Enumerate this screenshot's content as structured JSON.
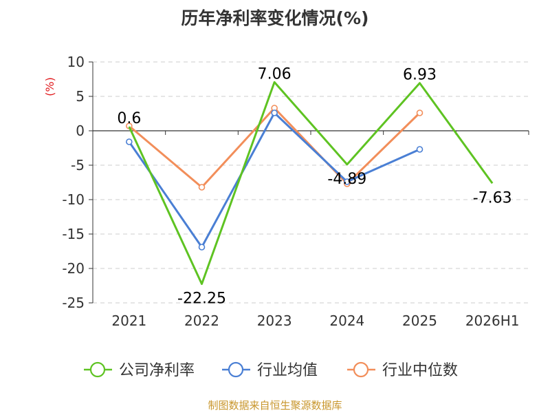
{
  "chart_data": {
    "type": "line",
    "title": "历年净利率变化情况(%)",
    "ylabel": "(%)",
    "ylim": [
      -25,
      10
    ],
    "yticks": [
      10,
      5,
      0,
      -5,
      -10,
      -15,
      -20,
      -25
    ],
    "categories": [
      "2021",
      "2022",
      "2023",
      "2024",
      "2025",
      "2026H1"
    ],
    "grid": true,
    "legend_position": "bottom",
    "series": [
      {
        "name": "公司净利率",
        "color": "#5ec322",
        "values": [
          0.6,
          -22.25,
          7.06,
          -4.89,
          6.93,
          -7.63
        ],
        "labels": [
          "0.6",
          "-22.25",
          "7.06",
          "-4.89",
          "6.93",
          "-7.63"
        ]
      },
      {
        "name": "行业均值",
        "color": "#4a7fd4",
        "values": [
          -1.6,
          -16.9,
          2.6,
          -7.4,
          -2.7,
          null
        ]
      },
      {
        "name": "行业中位数",
        "color": "#f28e5a",
        "values": [
          0.7,
          -8.2,
          3.3,
          -7.7,
          2.6,
          null
        ]
      }
    ]
  },
  "source_text": "制图数据来自恒生聚源数据库"
}
